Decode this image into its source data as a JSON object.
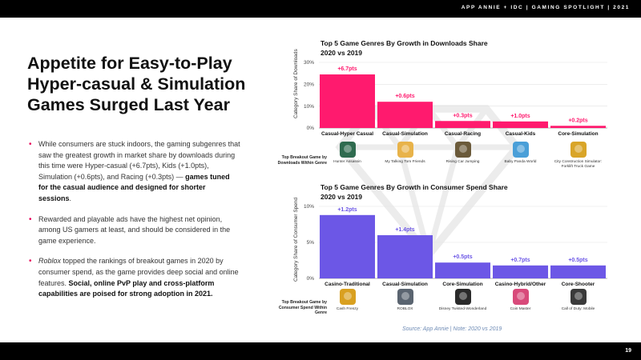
{
  "header": {
    "text": "APP ANNIE + IDC  |  GAMING SPOTLIGHT  |  2021"
  },
  "footer": {
    "page_number": "19"
  },
  "headline": "Appetite for Easy-to-Play Hyper-casual & Simulation Games Surged Last Year",
  "bullets": [
    {
      "plain": "While consumers are stuck indoors, the gaming subgenres that saw the greatest growth in market share by downloads during this time were Hyper-casual (+6.7pts),  Kids (+1.0pts), Simulation (+0.6pts), and Racing (+0.3pts) — ",
      "bold": "games tuned for the casual audience and designed for shorter sessions",
      "end": "."
    },
    {
      "plain": "Rewarded and playable ads have the highest net opinion, among US gamers at least, and should be considered in the game experience."
    },
    {
      "italic": "Roblox",
      "plain": " topped the rankings of breakout games in 2020 by consumer spend, as the game provides deep social and online features. ",
      "bold": "Social, online PvP play and cross-platform capabilities are poised for strong adoption in 2021."
    }
  ],
  "source": "Source: App Annie | Note: 2020 vs 2019",
  "colors": {
    "downloads_bar": "#ff1a6e",
    "spend_bar": "#6c57e6",
    "accent_bullet": "#e8005a"
  },
  "chart_data": [
    {
      "type": "bar",
      "title": "Top 5 Game Genres By Growth in Downloads Share",
      "subtitle": "2020 vs 2019",
      "ylabel": "Category Share of Downloads",
      "ylim": [
        0,
        30
      ],
      "yticks": [
        "0%",
        "10%",
        "20%",
        "30%"
      ],
      "grid": true,
      "categories": [
        "Casual-Hyper Casual",
        "Casual-Simulation",
        "Casual-Racing",
        "Casual-Kids",
        "Core-Simulation"
      ],
      "values": [
        24.5,
        12,
        3.2,
        3,
        1
      ],
      "data_labels": [
        "+6.7pts",
        "+0.6pts",
        "+0.3pts",
        "+1.0pts",
        "+0.2pts"
      ],
      "breakout_label": "Top Breakout Game by Downloads Within Genre",
      "breakout_games": [
        "Hunter Assassin",
        "My Talking Tom Friends",
        "Rising Car Jumping",
        "Baby Panda World",
        "City Construction Simulator: Forklift Truck Game"
      ],
      "breakout_icon_colors": [
        "#2f6b4f",
        "#e8b34a",
        "#6b5a3a",
        "#4a9fd8",
        "#d9a528"
      ]
    },
    {
      "type": "bar",
      "title": "Top 5 Game Genres By Growth in Consumer Spend Share",
      "subtitle": "2020 vs 2019",
      "ylabel": "Category Share of Consumer Spend",
      "ylim": [
        0,
        10
      ],
      "yticks": [
        "0%",
        "5%",
        "10%"
      ],
      "grid": true,
      "categories": [
        "Casino-Traditional",
        "Casual-Simulation",
        "Core-Simulation",
        "Casino-Hybrid/Other",
        "Core-Shooter"
      ],
      "values": [
        8.8,
        6,
        2.2,
        1.8,
        1.8
      ],
      "data_labels": [
        "+1.2pts",
        "+1.4pts",
        "+0.5pts",
        "+0.7pts",
        "+0.5pts"
      ],
      "breakout_label": "Top Breakout Game by Consumer Spend Within Genre",
      "breakout_games": [
        "Cash Frenzy",
        "ROBLOX",
        "Disney Twisted-Wonderland",
        "Coin Master",
        "Call of Duty: Mobile"
      ],
      "breakout_icon_colors": [
        "#d9a020",
        "#5a6470",
        "#2a2a2a",
        "#d84a7a",
        "#3a3a3a"
      ]
    }
  ]
}
